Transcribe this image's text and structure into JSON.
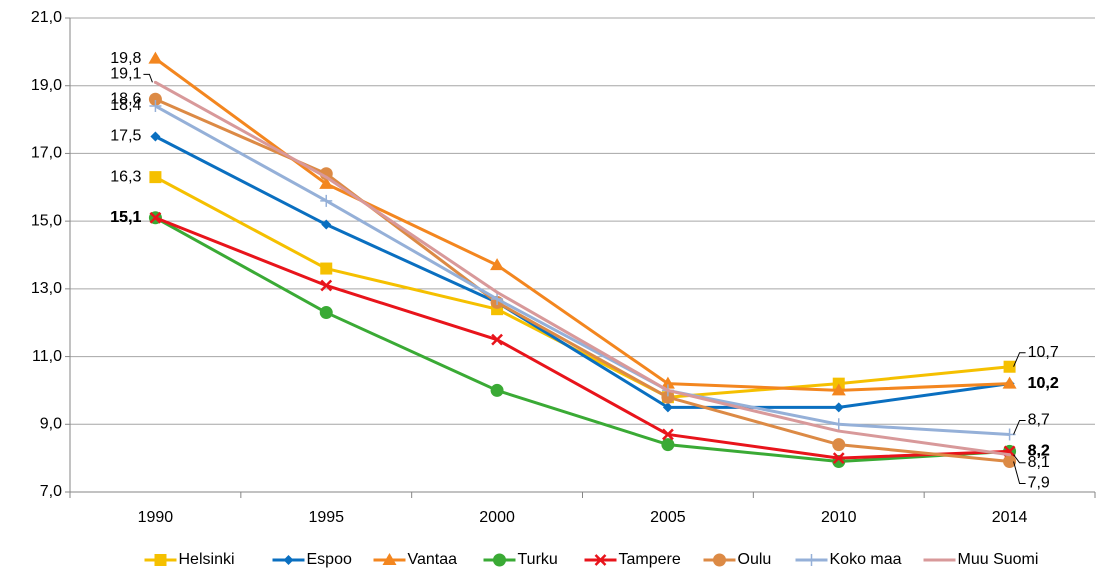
{
  "chart_data": {
    "type": "line",
    "categories": [
      "1990",
      "1995",
      "2000",
      "2005",
      "2010",
      "2014"
    ],
    "ylim": [
      7,
      21
    ],
    "yticks": [
      {
        "value": 7,
        "label": "7,0"
      },
      {
        "value": 9,
        "label": "9,0"
      },
      {
        "value": 11,
        "label": "11,0"
      },
      {
        "value": 13,
        "label": "13,0"
      },
      {
        "value": 15,
        "label": "15,0"
      },
      {
        "value": 17,
        "label": "17,0"
      },
      {
        "value": 19,
        "label": "19,0"
      },
      {
        "value": 21,
        "label": "21,0"
      }
    ],
    "grid": true,
    "legend": "bottom",
    "series": [
      {
        "name": "Helsinki",
        "color": "#f5c000",
        "marker": "square",
        "values": [
          16.3,
          13.6,
          12.4,
          9.8,
          10.2,
          10.7
        ],
        "value_labels": [
          "16,3",
          null,
          null,
          null,
          null,
          "10,7"
        ]
      },
      {
        "name": "Espoo",
        "color": "#0a6fc0",
        "marker": "diamond",
        "values": [
          17.5,
          14.9,
          12.6,
          9.5,
          9.5,
          10.2
        ],
        "value_labels": [
          "17,5",
          null,
          null,
          null,
          null,
          "10,2"
        ]
      },
      {
        "name": "Vantaa",
        "color": "#f3861f",
        "marker": "triangle",
        "values": [
          19.8,
          16.1,
          13.7,
          10.2,
          10.0,
          10.2
        ],
        "value_labels": [
          "19,8",
          null,
          null,
          null,
          null,
          "10,2"
        ]
      },
      {
        "name": "Turku",
        "color": "#3aaa35",
        "marker": "circle",
        "values": [
          15.1,
          12.3,
          10.0,
          8.4,
          7.9,
          8.2
        ],
        "value_labels": [
          "15,1",
          null,
          null,
          null,
          null,
          "8,2"
        ]
      },
      {
        "name": "Tampere",
        "color": "#e8141b",
        "marker": "x",
        "values": [
          15.1,
          13.1,
          11.5,
          8.7,
          8.0,
          8.2
        ],
        "value_labels": [
          "15,1",
          null,
          null,
          null,
          null,
          "8,2"
        ]
      },
      {
        "name": "Oulu",
        "color": "#dc8a45",
        "marker": "circle",
        "values": [
          18.6,
          16.4,
          12.6,
          9.8,
          8.4,
          7.9
        ],
        "value_labels": [
          "18,6",
          null,
          null,
          null,
          null,
          "7,9"
        ]
      },
      {
        "name": "Koko maa",
        "color": "#95b0d8",
        "marker": "plus",
        "values": [
          18.4,
          15.6,
          12.7,
          10.0,
          9.0,
          8.7
        ],
        "value_labels": [
          "18,4",
          null,
          null,
          null,
          null,
          "8,7"
        ]
      },
      {
        "name": "Muu Suomi",
        "color": "#d8999a",
        "marker": "none",
        "values": [
          19.1,
          16.3,
          12.9,
          10.0,
          8.8,
          8.1
        ],
        "value_labels": [
          "19,1",
          null,
          null,
          null,
          null,
          "8,1"
        ]
      }
    ]
  }
}
